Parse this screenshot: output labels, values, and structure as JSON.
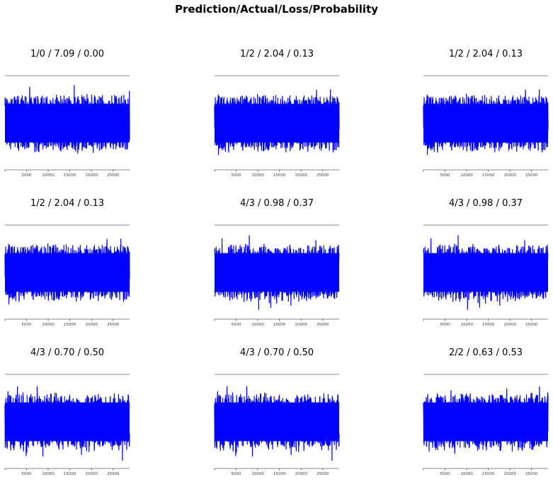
{
  "suptitle": "Prediction/Actual/Loss/Probability",
  "colors": {
    "signal": "#0000ff",
    "axis": "#888888"
  },
  "chart_data": [
    {
      "type": "line",
      "title": "1/0 / 7.09 / 0.00",
      "xlim": [
        0,
        28800
      ],
      "xticks": [
        5000,
        10000,
        15000,
        20000,
        25000
      ],
      "xticklabels": [
        "5000",
        "10000",
        "15000",
        "20000",
        "25000"
      ],
      "grid": false,
      "seed": 11
    },
    {
      "type": "line",
      "title": "1/2 / 2.04 / 0.13",
      "xlim": [
        0,
        28800
      ],
      "xticks": [
        5000,
        10000,
        15000,
        20000,
        25000
      ],
      "xticklabels": [
        "5000",
        "10000",
        "15000",
        "20000",
        "25000"
      ],
      "grid": false,
      "seed": 23
    },
    {
      "type": "line",
      "title": "1/2 / 2.04 / 0.13",
      "xlim": [
        0,
        28800
      ],
      "xticks": [
        5000,
        10000,
        15000,
        20000,
        25000
      ],
      "xticklabels": [
        "5000",
        "10000",
        "15000",
        "20000",
        "25000"
      ],
      "grid": false,
      "seed": 23
    },
    {
      "type": "line",
      "title": "1/2 / 2.04 / 0.13",
      "xlim": [
        0,
        28800
      ],
      "xticks": [
        5000,
        10000,
        15000,
        20000,
        25000
      ],
      "xticklabels": [
        "5000",
        "10000",
        "15000",
        "20000",
        "25000"
      ],
      "grid": false,
      "seed": 23
    },
    {
      "type": "line",
      "title": "4/3 / 0.98 / 0.37",
      "xlim": [
        0,
        28800
      ],
      "xticks": [
        5000,
        10000,
        15000,
        20000,
        25000
      ],
      "xticklabels": [
        "5000",
        "10000",
        "15000",
        "20000",
        "25000"
      ],
      "grid": false,
      "seed": 41
    },
    {
      "type": "line",
      "title": "4/3 / 0.98 / 0.37",
      "xlim": [
        0,
        28800
      ],
      "xticks": [
        5000,
        10000,
        15000,
        20000,
        25000
      ],
      "xticklabels": [
        "5000",
        "10000",
        "15000",
        "20000",
        "25000"
      ],
      "grid": false,
      "seed": 41
    },
    {
      "type": "line",
      "title": "4/3 / 0.70 / 0.50",
      "xlim": [
        0,
        28800
      ],
      "xticks": [
        5000,
        10000,
        15000,
        20000,
        25000
      ],
      "xticklabels": [
        "5000",
        "10000",
        "15000",
        "20000",
        "25000"
      ],
      "grid": false,
      "seed": 57
    },
    {
      "type": "line",
      "title": "4/3 / 0.70 / 0.50",
      "xlim": [
        0,
        28800
      ],
      "xticks": [
        5000,
        10000,
        15000,
        20000,
        25000
      ],
      "xticklabels": [
        "5000",
        "10000",
        "15000",
        "20000",
        "25000"
      ],
      "grid": false,
      "seed": 57
    },
    {
      "type": "line",
      "title": "2/2 / 0.63 / 0.53",
      "xlim": [
        0,
        28800
      ],
      "xticks": [
        5000,
        10000,
        15000,
        20000,
        25000
      ],
      "xticklabels": [
        "5000",
        "10000",
        "15000",
        "20000",
        "25000"
      ],
      "grid": false,
      "seed": 73
    }
  ]
}
